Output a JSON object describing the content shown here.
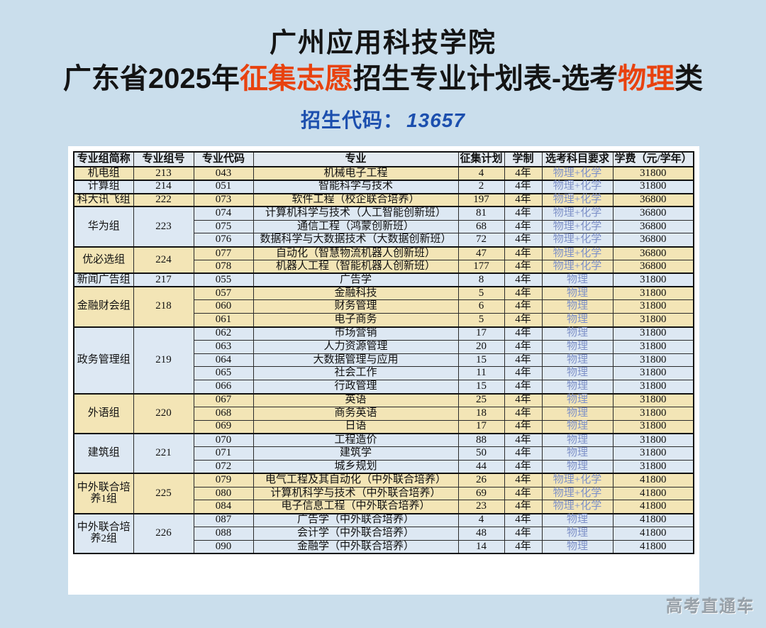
{
  "header": {
    "title_line1": "广州应用科技学院",
    "title_line2_parts": [
      {
        "text": "广东省2025年",
        "color": "black"
      },
      {
        "text": "征集志愿",
        "color": "red"
      },
      {
        "text": "招生专业计划表-选考",
        "color": "black"
      },
      {
        "text": "物理",
        "color": "red"
      },
      {
        "text": "类",
        "color": "black"
      }
    ],
    "code_label": "招生代码：",
    "code_value": "13657"
  },
  "colors": {
    "page_background": "#cadeec",
    "panel_background": "#ffffff",
    "title_red": "#e8420f",
    "code_blue": "#1c4fae",
    "row_cream": "#f3e5b6",
    "row_blue": "#dde8f3",
    "header_row": "#e2e9f0",
    "subjects_text": "#7e91c8"
  },
  "table": {
    "headers": [
      "专业组简称",
      "专业组号",
      "专业代码",
      "专业",
      "征集计划",
      "学制",
      "选考科目要求",
      "学费（元/学年）"
    ],
    "groups": [
      {
        "name": "机电组",
        "group_no": "213",
        "shade": "cream",
        "rows": [
          {
            "code": "043",
            "major": "机械电子工程",
            "plan": "4",
            "years": "4年",
            "subjects": "物理+化学",
            "fee": "31800"
          }
        ]
      },
      {
        "name": "计算组",
        "group_no": "214",
        "shade": "blue",
        "rows": [
          {
            "code": "051",
            "major": "智能科学与技术",
            "plan": "2",
            "years": "4年",
            "subjects": "物理+化学",
            "fee": "31800"
          }
        ]
      },
      {
        "name": "科大讯飞组",
        "group_no": "222",
        "shade": "cream",
        "rows": [
          {
            "code": "073",
            "major": "软件工程（校企联合培养）",
            "plan": "197",
            "years": "4年",
            "subjects": "物理+化学",
            "fee": "36800"
          }
        ]
      },
      {
        "name": "华为组",
        "group_no": "223",
        "shade": "blue",
        "rows": [
          {
            "code": "074",
            "major": "计算机科学与技术（人工智能创新班）",
            "plan": "81",
            "years": "4年",
            "subjects": "物理+化学",
            "fee": "36800"
          },
          {
            "code": "075",
            "major": "通信工程（鸿蒙创新班）",
            "plan": "68",
            "years": "4年",
            "subjects": "物理+化学",
            "fee": "36800"
          },
          {
            "code": "076",
            "major": "数据科学与大数据技术（大数据创新班）",
            "plan": "72",
            "years": "4年",
            "subjects": "物理+化学",
            "fee": "36800"
          }
        ]
      },
      {
        "name": "优必选组",
        "group_no": "224",
        "shade": "cream",
        "rows": [
          {
            "code": "077",
            "major": "自动化（智慧物流机器人创新班）",
            "plan": "47",
            "years": "4年",
            "subjects": "物理+化学",
            "fee": "36800"
          },
          {
            "code": "078",
            "major": "机器人工程（智能机器人创新班）",
            "plan": "177",
            "years": "4年",
            "subjects": "物理+化学",
            "fee": "36800"
          }
        ]
      },
      {
        "name": "新闻广告组",
        "group_no": "217",
        "shade": "blue",
        "rows": [
          {
            "code": "055",
            "major": "广告学",
            "plan": "8",
            "years": "4年",
            "subjects": "物理",
            "fee": "31800"
          }
        ]
      },
      {
        "name": "金融财会组",
        "group_no": "218",
        "shade": "cream",
        "rows": [
          {
            "code": "057",
            "major": "金融科技",
            "plan": "5",
            "years": "4年",
            "subjects": "物理",
            "fee": "31800"
          },
          {
            "code": "060",
            "major": "财务管理",
            "plan": "6",
            "years": "4年",
            "subjects": "物理",
            "fee": "31800"
          },
          {
            "code": "061",
            "major": "电子商务",
            "plan": "5",
            "years": "4年",
            "subjects": "物理",
            "fee": "31800"
          }
        ]
      },
      {
        "name": "政务管理组",
        "group_no": "219",
        "shade": "blue",
        "rows": [
          {
            "code": "062",
            "major": "市场营销",
            "plan": "17",
            "years": "4年",
            "subjects": "物理",
            "fee": "31800"
          },
          {
            "code": "063",
            "major": "人力资源管理",
            "plan": "20",
            "years": "4年",
            "subjects": "物理",
            "fee": "31800"
          },
          {
            "code": "064",
            "major": "大数据管理与应用",
            "plan": "15",
            "years": "4年",
            "subjects": "物理",
            "fee": "31800"
          },
          {
            "code": "065",
            "major": "社会工作",
            "plan": "11",
            "years": "4年",
            "subjects": "物理",
            "fee": "31800"
          },
          {
            "code": "066",
            "major": "行政管理",
            "plan": "15",
            "years": "4年",
            "subjects": "物理",
            "fee": "31800"
          }
        ]
      },
      {
        "name": "外语组",
        "group_no": "220",
        "shade": "cream",
        "rows": [
          {
            "code": "067",
            "major": "英语",
            "plan": "25",
            "years": "4年",
            "subjects": "物理",
            "fee": "31800"
          },
          {
            "code": "068",
            "major": "商务英语",
            "plan": "18",
            "years": "4年",
            "subjects": "物理",
            "fee": "31800"
          },
          {
            "code": "069",
            "major": "日语",
            "plan": "17",
            "years": "4年",
            "subjects": "物理",
            "fee": "31800"
          }
        ]
      },
      {
        "name": "建筑组",
        "group_no": "221",
        "shade": "blue",
        "rows": [
          {
            "code": "070",
            "major": "工程造价",
            "plan": "88",
            "years": "4年",
            "subjects": "物理",
            "fee": "31800"
          },
          {
            "code": "071",
            "major": "建筑学",
            "plan": "50",
            "years": "4年",
            "subjects": "物理",
            "fee": "31800"
          },
          {
            "code": "072",
            "major": "城乡规划",
            "plan": "44",
            "years": "4年",
            "subjects": "物理",
            "fee": "31800"
          }
        ]
      },
      {
        "name": "中外联合培养1组",
        "group_no": "225",
        "shade": "cream",
        "rows": [
          {
            "code": "079",
            "major": "电气工程及其自动化（中外联合培养）",
            "plan": "26",
            "years": "4年",
            "subjects": "物理+化学",
            "fee": "41800"
          },
          {
            "code": "080",
            "major": "计算机科学与技术（中外联合培养）",
            "plan": "69",
            "years": "4年",
            "subjects": "物理+化学",
            "fee": "41800"
          },
          {
            "code": "084",
            "major": "电子信息工程（中外联合培养）",
            "plan": "23",
            "years": "4年",
            "subjects": "物理+化学",
            "fee": "41800"
          }
        ]
      },
      {
        "name": "中外联合培养2组",
        "group_no": "226",
        "shade": "blue",
        "rows": [
          {
            "code": "087",
            "major": "广告学（中外联合培养）",
            "plan": "4",
            "years": "4年",
            "subjects": "物理",
            "fee": "41800"
          },
          {
            "code": "088",
            "major": "会计学（中外联合培养）",
            "plan": "48",
            "years": "4年",
            "subjects": "物理",
            "fee": "41800"
          },
          {
            "code": "090",
            "major": "金融学（中外联合培养）",
            "plan": "14",
            "years": "4年",
            "subjects": "物理",
            "fee": "41800"
          }
        ]
      }
    ]
  },
  "footer": {
    "watermark": "高考直通车"
  }
}
